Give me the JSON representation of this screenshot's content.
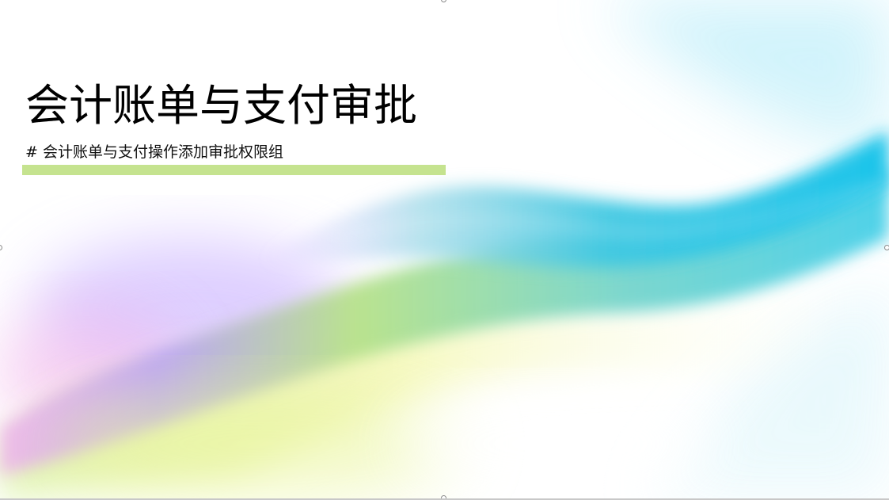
{
  "slide": {
    "title": "会计账单与支付审批",
    "subtitle": "# 会计账单与支付操作添加审批权限组"
  },
  "colors": {
    "accent_bar": "#c5e38f",
    "wave_blue": "#22c6e6",
    "wave_purple": "#a98cf2",
    "wave_green": "#b8e07c",
    "wave_yellow": "#eef59a"
  }
}
